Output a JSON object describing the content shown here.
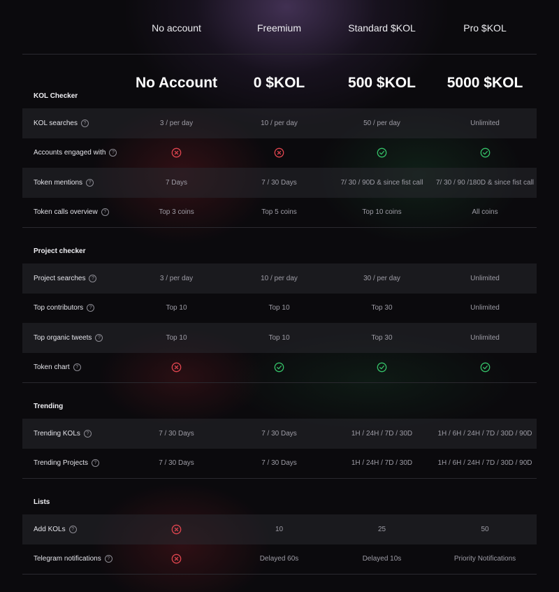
{
  "tiers": [
    "No account",
    "Freemium",
    "Standard $KOL",
    "Pro $KOL"
  ],
  "prices": [
    "No Account",
    "0 $KOL",
    "500 $KOL",
    "5000 $KOL"
  ],
  "colors": {
    "cross": "#e0454f",
    "check": "#35c168"
  },
  "sections": [
    {
      "title": "KOL Checker",
      "rows": [
        {
          "label": "KOL searches",
          "values": [
            "3 / per day",
            "10 / per day",
            "50 / per day",
            "Unlimited"
          ]
        },
        {
          "label": "Accounts engaged with",
          "values": [
            "x-icon",
            "x-icon",
            "check-icon",
            "check-icon"
          ]
        },
        {
          "label": "Token mentions",
          "values": [
            "7 Days",
            "7 / 30  Days",
            "7/ 30 / 90D & since fist call",
            "7/ 30 / 90 /180D & since fist call"
          ]
        },
        {
          "label": "Token calls overview",
          "values": [
            "Top 3 coins",
            "Top 5 coins",
            "Top 10 coins",
            "All coins"
          ]
        }
      ]
    },
    {
      "title": "Project checker",
      "rows": [
        {
          "label": "Project searches",
          "values": [
            "3 / per day",
            "10 / per day",
            "30 / per day",
            "Unlimited"
          ]
        },
        {
          "label": "Top contributors",
          "values": [
            "Top 10",
            "Top 10",
            "Top 30",
            "Unlimited"
          ]
        },
        {
          "label": "Top organic tweets",
          "values": [
            "Top 10",
            "Top 10",
            "Top 30",
            "Unlimited"
          ]
        },
        {
          "label": "Token chart",
          "values": [
            "x-icon",
            "check-icon",
            "check-icon",
            "check-icon"
          ]
        }
      ]
    },
    {
      "title": "Trending",
      "rows": [
        {
          "label": "Trending KOLs",
          "values": [
            "7 / 30 Days",
            "7 / 30 Days",
            "1H / 24H / 7D / 30D",
            "1H / 6H / 24H / 7D / 30D / 90D"
          ]
        },
        {
          "label": "Trending Projects",
          "values": [
            "7 / 30 Days",
            "7 / 30 Days",
            "1H / 24H / 7D / 30D",
            "1H / 6H / 24H / 7D / 30D / 90D"
          ]
        }
      ]
    },
    {
      "title": "Lists",
      "rows": [
        {
          "label": "Add KOLs",
          "values": [
            "x-icon",
            "10",
            "25",
            "50"
          ]
        },
        {
          "label": "Telegram notifications",
          "values": [
            "x-icon",
            "Delayed 60s",
            "Delayed 10s",
            "Priority Notifications"
          ]
        }
      ]
    }
  ]
}
